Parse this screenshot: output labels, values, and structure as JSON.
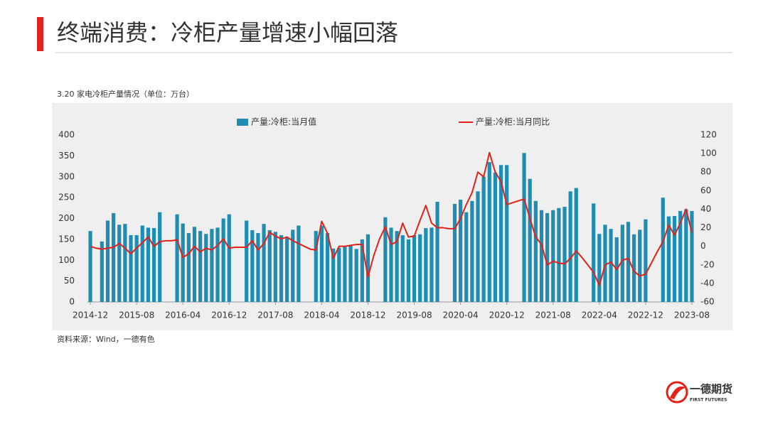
{
  "header": {
    "title": "终端消费：冷柜产量增速小幅回落"
  },
  "chart_data": {
    "type": "bar",
    "caption": "3.20 家电冷柜产量情况（单位：万台）",
    "categories": [
      "2014-12",
      null,
      null,
      null,
      null,
      null,
      null,
      null,
      "2015-08",
      null,
      null,
      null,
      null,
      null,
      null,
      null,
      "2016-04",
      null,
      null,
      null,
      null,
      null,
      null,
      null,
      "2016-12",
      null,
      null,
      null,
      null,
      null,
      null,
      null,
      "2017-08",
      null,
      null,
      null,
      null,
      null,
      null,
      null,
      "2018-04",
      null,
      null,
      null,
      null,
      null,
      null,
      null,
      "2018-12",
      null,
      null,
      null,
      null,
      null,
      null,
      null,
      "2019-08",
      null,
      null,
      null,
      null,
      null,
      null,
      null,
      "2020-04",
      null,
      null,
      null,
      null,
      null,
      null,
      null,
      "2020-12",
      null,
      null,
      null,
      null,
      null,
      null,
      null,
      "2021-08",
      null,
      null,
      null,
      null,
      null,
      null,
      null,
      "2022-04",
      null,
      null,
      null,
      null,
      null,
      null,
      null,
      "2022-12",
      null,
      null,
      null,
      null,
      null,
      null,
      null,
      "2023-08"
    ],
    "series": [
      {
        "name": "产量:冷柜:当月值",
        "type": "bar",
        "color": "#1f8db2",
        "values": [
          170,
          null,
          145,
          195,
          213,
          185,
          187,
          160,
          160,
          183,
          178,
          177,
          215,
          null,
          null,
          210,
          188,
          165,
          180,
          170,
          163,
          175,
          178,
          200,
          210,
          null,
          null,
          195,
          172,
          165,
          187,
          172,
          168,
          160,
          155,
          173,
          183,
          null,
          null,
          170,
          183,
          165,
          128,
          130,
          132,
          135,
          127,
          150,
          162,
          null,
          null,
          203,
          178,
          170,
          160,
          150,
          160,
          162,
          177,
          178,
          240,
          null,
          null,
          235,
          245,
          215,
          242,
          265,
          300,
          335,
          310,
          328,
          328,
          null,
          null,
          357,
          295,
          242,
          220,
          213,
          220,
          225,
          228,
          265,
          273,
          null,
          null,
          236,
          163,
          185,
          175,
          155,
          185,
          192,
          162,
          173,
          198,
          null,
          null,
          250,
          205,
          206,
          218,
          222,
          218
        ]
      },
      {
        "name": "产量:冷柜:当月同比",
        "type": "line",
        "axis": "y2",
        "color": "#e32119",
        "values": [
          0,
          -2,
          -3,
          -2,
          -1,
          3,
          -2,
          -8,
          -2,
          4,
          10,
          0,
          5,
          6,
          6,
          7,
          -12,
          -8,
          0,
          -6,
          -2,
          -4,
          1,
          8,
          -2,
          -1,
          -1,
          -1,
          6,
          -4,
          3,
          15,
          11,
          8,
          10,
          6,
          3,
          0,
          -3,
          -4,
          27,
          14,
          -13,
          0,
          0,
          1,
          2,
          2,
          -33,
          -10,
          8,
          21,
          2,
          5,
          25,
          10,
          11,
          28,
          44,
          25,
          20,
          20,
          19,
          19,
          30,
          45,
          58,
          80,
          75,
          101,
          80,
          70,
          45,
          47,
          49,
          51,
          30,
          10,
          2,
          -20,
          -16,
          -18,
          -19,
          -13,
          -5,
          -12,
          -20,
          -28,
          -42,
          -20,
          -17,
          -25,
          -15,
          -13,
          -27,
          -32,
          -30,
          -18,
          -6,
          5,
          23,
          12,
          25,
          40,
          15
        ]
      }
    ],
    "ylim": [
      0,
      400
    ],
    "yticks": [
      0,
      50,
      100,
      150,
      200,
      250,
      300,
      350,
      400
    ],
    "y2lim": [
      -60,
      120
    ],
    "y2ticks": [
      -60,
      -40,
      -20,
      0,
      20,
      40,
      60,
      80,
      100,
      120
    ]
  },
  "source": "资料来源：Wind，一德有色",
  "logo": {
    "name": "一德期货",
    "sub": "FIRST FUTURES"
  }
}
